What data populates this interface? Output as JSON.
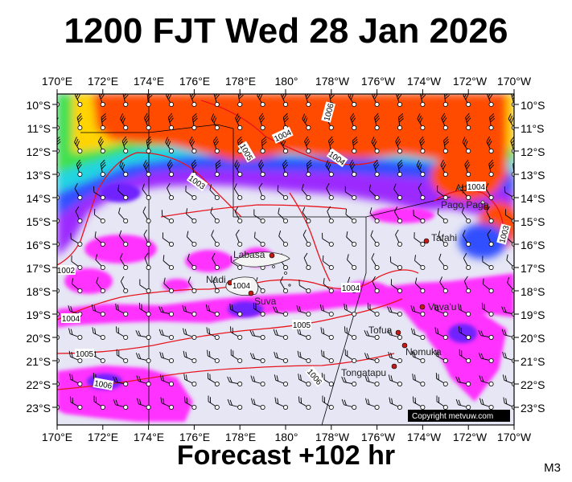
{
  "header": {
    "title": "1200 FJT Wed 28 Jan 2026"
  },
  "footer": {
    "forecast": "Forecast +102 hr",
    "model": "M3",
    "copyright": "Copyright metvuw.com"
  },
  "map": {
    "lon_labels": [
      "170°E",
      "172°E",
      "174°E",
      "176°E",
      "178°E",
      "180°",
      "178°W",
      "176°W",
      "174°W",
      "172°W",
      "170°W"
    ],
    "lat_labels": [
      "10°S",
      "11°S",
      "12°S",
      "13°S",
      "14°S",
      "15°S",
      "16°S",
      "17°S",
      "18°S",
      "19°S",
      "20°S",
      "21°S",
      "22°S",
      "23°S"
    ],
    "colors": {
      "background": "#e6e6f5",
      "heavy_rain": "#ff4c00",
      "moderate": "#ff00ff",
      "light": "#9c2bff",
      "isobar": "#e8141d",
      "border": "#000000"
    },
    "isobar_labels": [
      "1002",
      "1003",
      "1004",
      "1005",
      "1006"
    ],
    "places": [
      {
        "name": "Apia",
        "label": "Apia"
      },
      {
        "name": "Pago Pago",
        "label": "Pago Pago"
      },
      {
        "name": "Tafahi",
        "label": "Tafahi"
      },
      {
        "name": "Labasa",
        "label": "Labasa"
      },
      {
        "name": "Nadi",
        "label": "Nadi"
      },
      {
        "name": "Suva",
        "label": "Suva"
      },
      {
        "name": "Vava'u",
        "label": "Vava'u"
      },
      {
        "name": "Tofua",
        "label": "Tofua"
      },
      {
        "name": "Nomuka",
        "label": "Nomuka"
      },
      {
        "name": "Tongatapu",
        "label": "Tongatapu"
      }
    ]
  }
}
